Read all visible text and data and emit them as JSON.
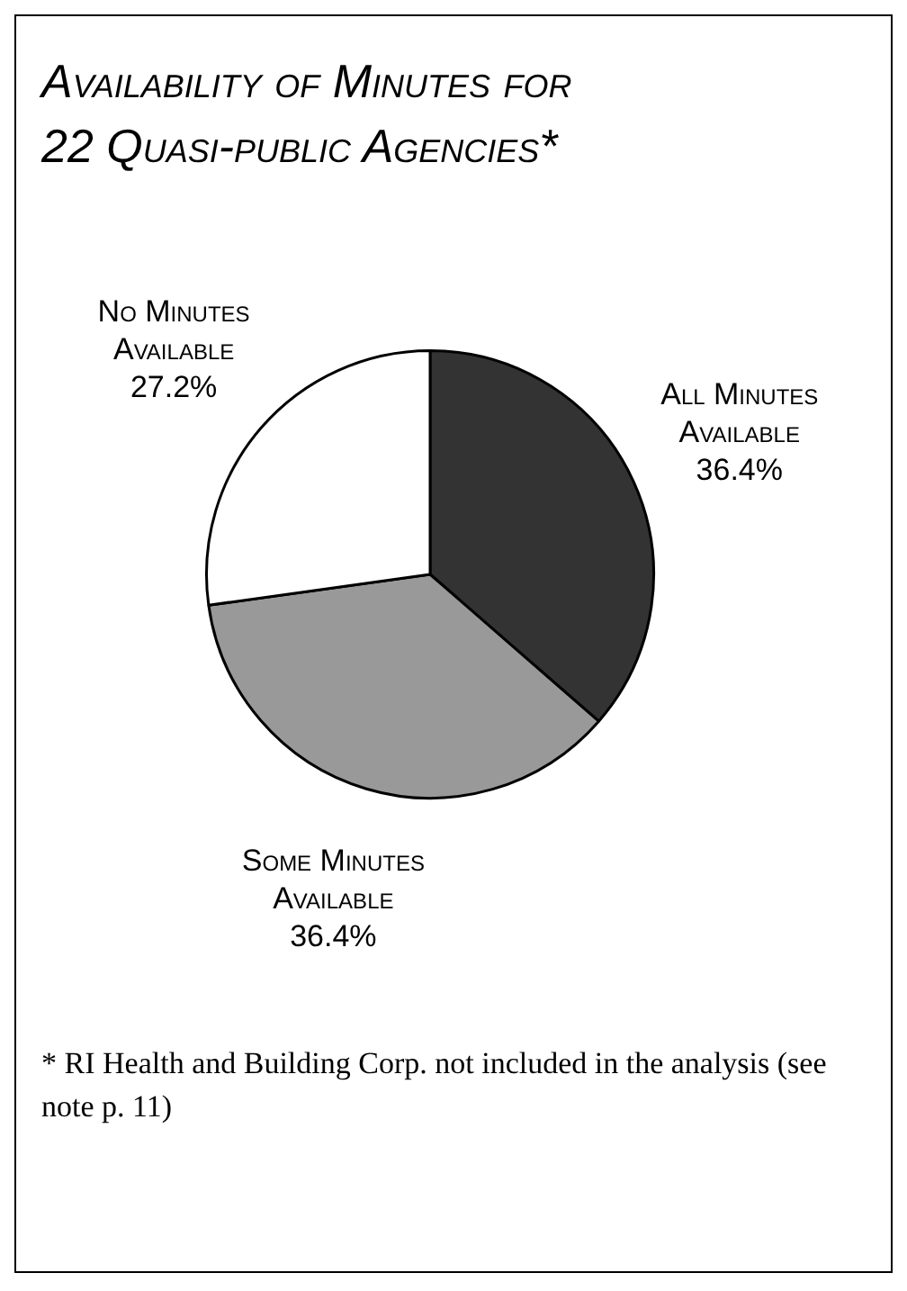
{
  "chart_data": {
    "type": "pie",
    "title": "Availability of Minutes for 22 Quasi-public Agencies*",
    "categories": [
      "All Minutes Available",
      "Some Minutes Available",
      "No Minutes Available"
    ],
    "values": [
      36.4,
      36.4,
      27.2
    ],
    "colors": [
      "#333333",
      "#999999",
      "#ffffff"
    ],
    "value_labels": [
      "36.4%",
      "36.4%",
      "27.2%"
    ],
    "annotations": [
      "* RI Health and Building Corp. not included in the analysis (see note p. 11)"
    ]
  }
}
